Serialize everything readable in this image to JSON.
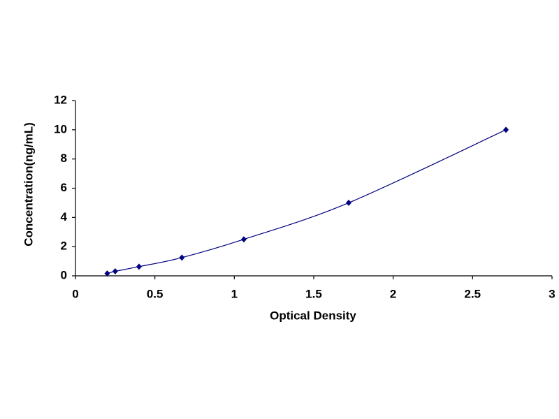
{
  "chart_data": {
    "type": "scatter",
    "x_label": "Optical Density",
    "y_label": "Concentration(ng/mL)",
    "x": [
      0.2,
      0.25,
      0.4,
      0.67,
      1.06,
      1.72,
      2.71
    ],
    "values": [
      0.16,
      0.31,
      0.63,
      1.25,
      2.5,
      5,
      10
    ],
    "color": "#000080",
    "line": true,
    "grid": false,
    "xlim": [
      0,
      3
    ],
    "xticks": [
      0,
      0.5,
      1,
      1.5,
      2,
      2.5,
      3
    ],
    "ylim": [
      0,
      12
    ],
    "yticks": [
      0,
      2,
      4,
      6,
      8,
      10,
      12
    ]
  }
}
